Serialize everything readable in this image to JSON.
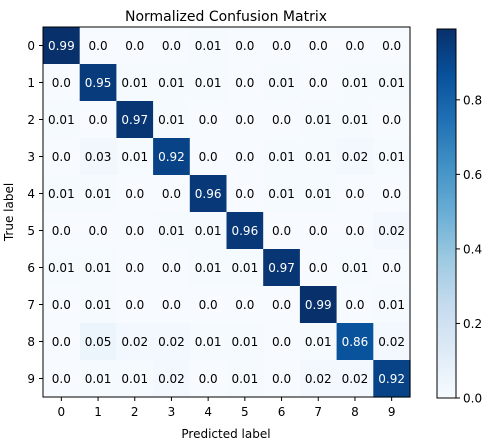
{
  "chart_data": {
    "type": "heatmap",
    "title": "Normalized Confusion Matrix",
    "xlabel": "Predicted label",
    "ylabel": "True label",
    "x_categories": [
      "0",
      "1",
      "2",
      "3",
      "4",
      "5",
      "6",
      "7",
      "8",
      "9"
    ],
    "y_categories": [
      "0",
      "1",
      "2",
      "3",
      "4",
      "5",
      "6",
      "7",
      "8",
      "9"
    ],
    "matrix": [
      [
        "0.99",
        "0.0",
        "0.0",
        "0.0",
        "0.01",
        "0.0",
        "0.0",
        "0.0",
        "0.0",
        "0.0"
      ],
      [
        "0.0",
        "0.95",
        "0.01",
        "0.01",
        "0.01",
        "0.0",
        "0.01",
        "0.0",
        "0.01",
        "0.01"
      ],
      [
        "0.01",
        "0.0",
        "0.97",
        "0.01",
        "0.0",
        "0.0",
        "0.0",
        "0.01",
        "0.01",
        "0.0"
      ],
      [
        "0.0",
        "0.03",
        "0.01",
        "0.92",
        "0.0",
        "0.0",
        "0.01",
        "0.01",
        "0.02",
        "0.01"
      ],
      [
        "0.01",
        "0.01",
        "0.0",
        "0.0",
        "0.96",
        "0.0",
        "0.01",
        "0.01",
        "0.0",
        "0.0"
      ],
      [
        "0.0",
        "0.0",
        "0.0",
        "0.01",
        "0.01",
        "0.96",
        "0.0",
        "0.0",
        "0.0",
        "0.02"
      ],
      [
        "0.01",
        "0.01",
        "0.0",
        "0.0",
        "0.01",
        "0.01",
        "0.97",
        "0.0",
        "0.01",
        "0.0"
      ],
      [
        "0.0",
        "0.01",
        "0.0",
        "0.0",
        "0.0",
        "0.0",
        "0.0",
        "0.99",
        "0.0",
        "0.01"
      ],
      [
        "0.0",
        "0.05",
        "0.02",
        "0.02",
        "0.01",
        "0.01",
        "0.0",
        "0.01",
        "0.86",
        "0.02"
      ],
      [
        "0.0",
        "0.01",
        "0.01",
        "0.02",
        "0.0",
        "0.01",
        "0.0",
        "0.02",
        "0.02",
        "0.92"
      ]
    ],
    "colormap": "Blues",
    "colorbar": {
      "range": [
        0.0,
        0.99
      ],
      "ticks": [
        "0.0",
        "0.2",
        "0.4",
        "0.6",
        "0.8"
      ],
      "tick_values": [
        0.0,
        0.2,
        0.4,
        0.6,
        0.8
      ]
    },
    "colors": {
      "low": "#f7fbff",
      "high": "#08306b",
      "text_dark": "#000000",
      "text_light": "#ffffff"
    },
    "grid": false
  }
}
